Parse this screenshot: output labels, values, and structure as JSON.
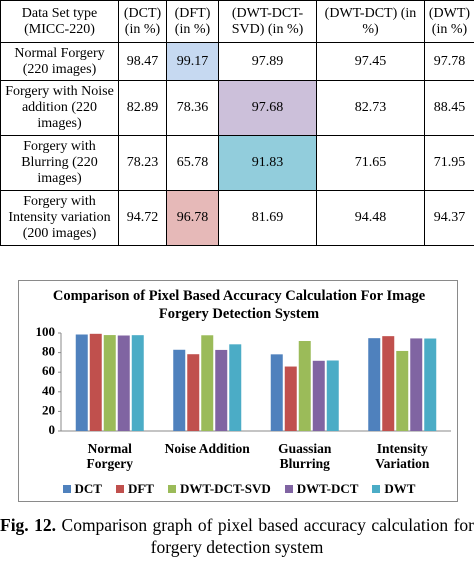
{
  "table": {
    "header": [
      "Data Set type (MICC-220)",
      "(DCT) (in %)",
      "(DFT) (in %)",
      "(DWT-DCT-SVD) (in %)",
      "(DWT-DCT) (in %)",
      "(DWT) (in %)"
    ],
    "rows": [
      [
        "Normal Forgery (220 images)",
        "98.47",
        "99.17",
        "97.89",
        "97.45",
        "97.78"
      ],
      [
        "Forgery with Noise addition (220 images)",
        "82.89",
        "78.36",
        "97.68",
        "82.73",
        "88.45"
      ],
      [
        "Forgery with Blurring (220 images)",
        "78.23",
        "65.78",
        "91.83",
        "71.65",
        "71.95"
      ],
      [
        "Forgery with Intensity variation (200 images)",
        "94.72",
        "96.78",
        "81.69",
        "94.48",
        "94.37"
      ]
    ]
  },
  "chart_data": {
    "type": "bar",
    "title": "Comparison of Pixel Based Accuracy Calculation For Image Forgery Detection System",
    "categories": [
      "Normal Forgery",
      "Noise Addition",
      "Guassian Blurring",
      "Intensity Variation"
    ],
    "series": [
      {
        "name": "DCT",
        "color": "#4f81bd",
        "values": [
          98.47,
          82.89,
          78.23,
          94.72
        ]
      },
      {
        "name": "DFT",
        "color": "#c0504d",
        "values": [
          99.17,
          78.36,
          65.78,
          96.78
        ]
      },
      {
        "name": "DWT-DCT-SVD",
        "color": "#9bbb59",
        "values": [
          97.89,
          97.68,
          91.83,
          81.69
        ]
      },
      {
        "name": "DWT-DCT",
        "color": "#8064a2",
        "values": [
          97.45,
          82.73,
          71.65,
          94.48
        ]
      },
      {
        "name": "DWT",
        "color": "#4bacc6",
        "values": [
          97.78,
          88.45,
          71.95,
          94.37
        ]
      }
    ],
    "ylim": [
      0,
      100
    ],
    "yticks": [
      0,
      20,
      40,
      60,
      80,
      100
    ],
    "legend": "bottom"
  },
  "caption": {
    "label": "Fig. 12.",
    "text": "Comparison graph of pixel based accuracy calculation for forgery detection system"
  }
}
